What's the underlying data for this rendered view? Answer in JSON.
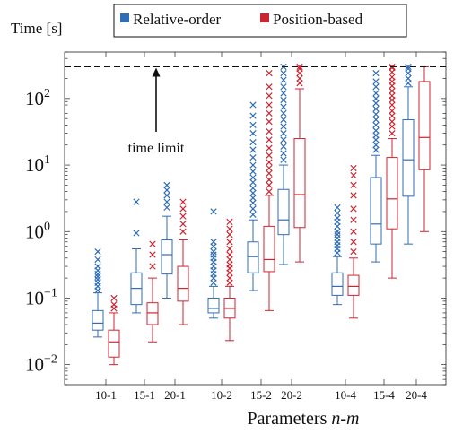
{
  "chart_data": {
    "type": "box",
    "ylabel": "Time [s]",
    "xlabel_prefix": "Parameters ",
    "xlabel_vars": "n-m",
    "yscale": "log",
    "ylim": [
      0.005,
      500
    ],
    "yticks": [
      {
        "value": 0.01,
        "base": "10",
        "exp": "−2"
      },
      {
        "value": 0.1,
        "base": "10",
        "exp": "−1"
      },
      {
        "value": 1,
        "base": "10",
        "exp": "0"
      },
      {
        "value": 10,
        "base": "10",
        "exp": "1"
      },
      {
        "value": 100,
        "base": "10",
        "exp": "2"
      }
    ],
    "time_limit": {
      "value": 300,
      "label": "time limit"
    },
    "legend": {
      "placement": "top"
    },
    "series": [
      {
        "name": "Relative-order",
        "color": "#2f6db5"
      },
      {
        "name": "Position-based",
        "color": "#cc2530"
      }
    ],
    "categories": [
      "10-1",
      "15-1",
      "20-1",
      "10-2",
      "15-2",
      "20-2",
      "10-4",
      "15-4",
      "20-4"
    ],
    "boxes": [
      {
        "category": "10-1",
        "series": 0,
        "whisker_low": 0.026,
        "q1": 0.033,
        "median": 0.042,
        "q3": 0.065,
        "whisker_high": 0.12,
        "outliers": [
          0.13,
          0.15,
          0.17,
          0.19,
          0.21,
          0.23,
          0.26,
          0.3,
          0.38,
          0.5
        ]
      },
      {
        "category": "10-1",
        "series": 1,
        "whisker_low": 0.01,
        "q1": 0.013,
        "median": 0.022,
        "q3": 0.033,
        "whisker_high": 0.06,
        "outliers": [
          0.07,
          0.08,
          0.1
        ]
      },
      {
        "category": "15-1",
        "series": 0,
        "whisker_low": 0.06,
        "q1": 0.08,
        "median": 0.14,
        "q3": 0.24,
        "whisker_high": 0.55,
        "outliers": [
          0.95,
          2.8
        ]
      },
      {
        "category": "15-1",
        "series": 1,
        "whisker_low": 0.022,
        "q1": 0.04,
        "median": 0.06,
        "q3": 0.085,
        "whisker_high": 0.2,
        "outliers": [
          0.3,
          0.45,
          0.65
        ]
      },
      {
        "category": "20-1",
        "series": 0,
        "whisker_low": 0.1,
        "q1": 0.23,
        "median": 0.45,
        "q3": 0.75,
        "whisker_high": 1.7,
        "outliers": [
          2.3,
          2.8,
          3.5,
          4.2,
          5.0
        ]
      },
      {
        "category": "20-1",
        "series": 1,
        "whisker_low": 0.04,
        "q1": 0.09,
        "median": 0.14,
        "q3": 0.3,
        "whisker_high": 0.75,
        "outliers": [
          1.0,
          1.3,
          1.7,
          2.2,
          2.8
        ]
      },
      {
        "category": "10-2",
        "series": 0,
        "whisker_low": 0.05,
        "q1": 0.06,
        "median": 0.07,
        "q3": 0.1,
        "whisker_high": 0.15,
        "outliers": [
          0.17,
          0.2,
          0.23,
          0.26,
          0.3,
          0.35,
          0.4,
          0.45,
          0.5,
          0.6,
          0.7,
          2.0
        ]
      },
      {
        "category": "10-2",
        "series": 1,
        "whisker_low": 0.023,
        "q1": 0.05,
        "median": 0.07,
        "q3": 0.1,
        "whisker_high": 0.15,
        "outliers": [
          0.17,
          0.2,
          0.24,
          0.28,
          0.32,
          0.38,
          0.45,
          0.55,
          0.7,
          0.9,
          1.1,
          1.4
        ]
      },
      {
        "category": "15-2",
        "series": 0,
        "whisker_low": 0.13,
        "q1": 0.24,
        "median": 0.42,
        "q3": 0.7,
        "whisker_high": 1.5,
        "outliers": [
          1.8,
          2.2,
          2.7,
          3.2,
          3.8,
          4.5,
          5.5,
          6.5,
          8,
          10,
          13,
          17,
          22,
          30,
          40,
          55,
          80
        ]
      },
      {
        "category": "15-2",
        "series": 1,
        "whisker_low": 0.065,
        "q1": 0.25,
        "median": 0.38,
        "q3": 1.2,
        "whisker_high": 3.5,
        "outliers": [
          4,
          5,
          6,
          7.5,
          9,
          11,
          14,
          18,
          24,
          32,
          45,
          60,
          80,
          110,
          150,
          240
        ]
      },
      {
        "category": "20-2",
        "series": 0,
        "whisker_low": 0.32,
        "q1": 0.9,
        "median": 1.5,
        "q3": 4.3,
        "whisker_high": 10,
        "outliers": [
          12,
          15,
          19,
          24,
          30,
          38,
          48,
          60,
          75,
          95,
          120,
          150,
          190,
          240,
          300
        ]
      },
      {
        "category": "20-2",
        "series": 1,
        "whisker_low": 0.35,
        "q1": 1.15,
        "median": 3.6,
        "q3": 25,
        "whisker_high": 140,
        "outliers": [
          170,
          200,
          240,
          280,
          300
        ]
      },
      {
        "category": "10-4",
        "series": 0,
        "whisker_low": 0.08,
        "q1": 0.11,
        "median": 0.15,
        "q3": 0.24,
        "whisker_high": 0.42,
        "outliers": [
          0.48,
          0.55,
          0.62,
          0.7,
          0.8,
          0.9,
          1.0,
          1.2,
          1.4,
          1.6,
          1.9,
          2.3
        ]
      },
      {
        "category": "10-4",
        "series": 1,
        "whisker_low": 0.05,
        "q1": 0.11,
        "median": 0.15,
        "q3": 0.22,
        "whisker_high": 0.4,
        "outliers": [
          0.5,
          0.7,
          1.0,
          1.5,
          2.2,
          3.5,
          5,
          7,
          9
        ]
      },
      {
        "category": "15-4",
        "series": 0,
        "whisker_low": 0.35,
        "q1": 0.65,
        "median": 1.3,
        "q3": 6.5,
        "whisker_high": 14,
        "outliers": [
          17,
          20,
          24,
          28,
          33,
          40,
          48,
          58,
          70,
          85,
          100,
          120,
          150,
          180,
          240
        ]
      },
      {
        "category": "15-4",
        "series": 1,
        "whisker_low": 0.2,
        "q1": 1.1,
        "median": 3.1,
        "q3": 13,
        "whisker_high": 25,
        "outliers": [
          30,
          38,
          45,
          55,
          65,
          80,
          95,
          110,
          130,
          155,
          180,
          210,
          250,
          290,
          300
        ]
      },
      {
        "category": "20-4",
        "series": 0,
        "whisker_low": 0.65,
        "q1": 3.4,
        "median": 12,
        "q3": 48,
        "whisker_high": 150,
        "outliers": [
          170,
          200,
          240,
          280,
          300
        ]
      },
      {
        "category": "20-4",
        "series": 1,
        "whisker_low": 1.0,
        "q1": 8.5,
        "median": 26,
        "q3": 180,
        "whisker_high": 300,
        "outliers": []
      }
    ]
  }
}
